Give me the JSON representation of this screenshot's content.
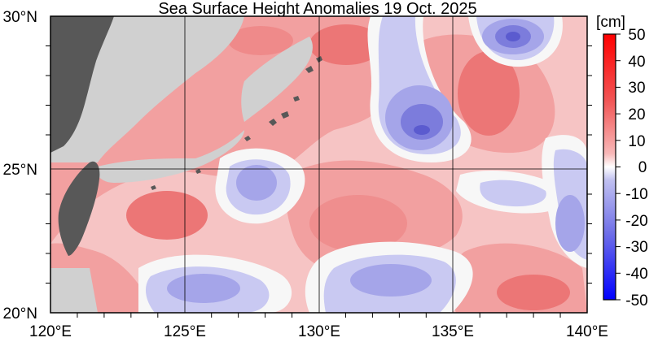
{
  "map": {
    "title": "Sea Surface Height Anomalies  19 Oct. 2025",
    "lat_labels": [
      {
        "value": 30,
        "text": "30°N"
      },
      {
        "value": 25,
        "text": "25°N"
      },
      {
        "value": 20,
        "text": "20°N"
      }
    ],
    "lon_labels": [
      {
        "value": 120,
        "text": "120°E"
      },
      {
        "value": 125,
        "text": "125°E"
      },
      {
        "value": 130,
        "text": "130°E"
      },
      {
        "value": 135,
        "text": "135°E"
      },
      {
        "value": 140,
        "text": "140°E"
      }
    ],
    "extent": {
      "lon_min": 120,
      "lon_max": 140,
      "lat_min": 20,
      "lat_max": 30
    }
  },
  "colorbar": {
    "unit": "[cm]",
    "ticks": [
      "50",
      "40",
      "30",
      "20",
      "10",
      "0",
      "-10",
      "-20",
      "-30",
      "-40",
      "-50"
    ],
    "range": [
      -50,
      50
    ]
  },
  "colors": {
    "land": "#d0d0d0",
    "land_dark": "#575757",
    "pos_light": "#f7c2c2",
    "pos_mid": "#f39c9c",
    "pos_strong": "#ec7373",
    "neg_light": "#c8c8f3",
    "neg_mid": "#a3a3ea",
    "neg_strong": "#7b7bdc",
    "neutral": "#f7f7f7"
  }
}
